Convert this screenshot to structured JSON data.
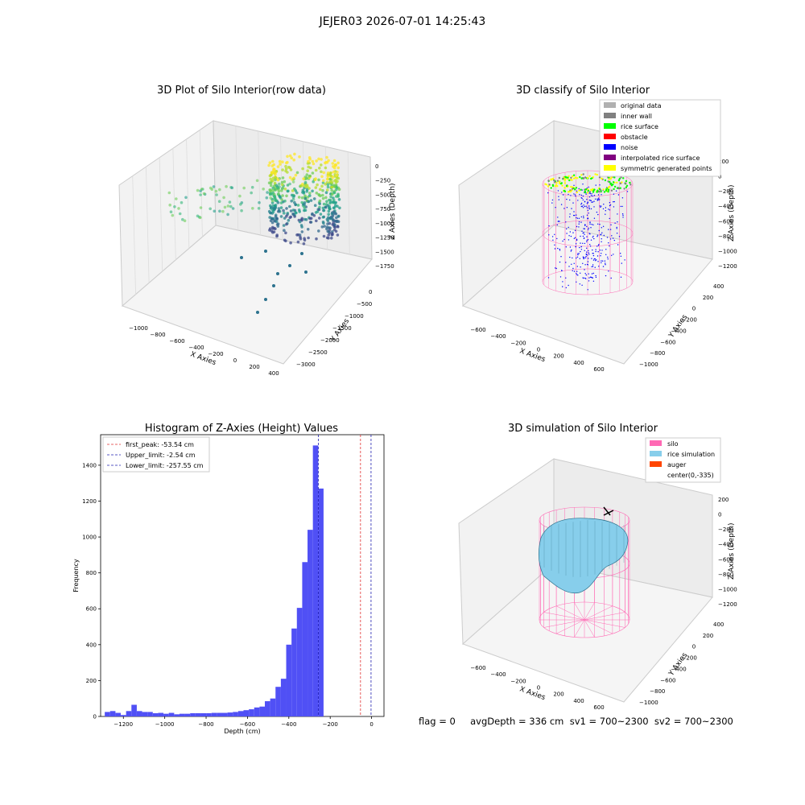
{
  "figure": {
    "suptitle": "JEJER03 2026-07-01 14:25:43"
  },
  "colors": {
    "hist_bar": "#5050f5",
    "peak_line": "#e03030",
    "limit_line": "#2020b0",
    "silo": "#ff69b4",
    "rice_sim": "#87ceeb",
    "auger": "#ff4500",
    "original": "#b0b0b0",
    "inner_wall": "#808080",
    "rice_surface": "#00ff00",
    "obstacle": "#ff0000",
    "noise": "#0000ff",
    "interp": "#800080",
    "symmetric": "#ffff00"
  },
  "panels": {
    "raw": {
      "title": "3D Plot of Silo Interior(row data)",
      "xlabel": "X Axies",
      "ylabel": "Y Axies",
      "zlabel": "Z Axies (Depth)",
      "xticks": [
        "−1000",
        "−800",
        "−600",
        "−400",
        "−200",
        "0",
        "200",
        "400"
      ],
      "yticks": [
        "0",
        "−500",
        "−1000",
        "−1500",
        "−2000",
        "−2500",
        "−3000"
      ],
      "zticks": [
        "0",
        "−250",
        "−500",
        "−750",
        "−1000",
        "−1250",
        "−1500",
        "−1750"
      ]
    },
    "classify": {
      "title": "3D classify of Silo Interior",
      "xlabel": "X Axies",
      "ylabel": "Y Axies",
      "zlabel": "Z Axies (Depth)",
      "xticks": [
        "−600",
        "−400",
        "−200",
        "0",
        "200",
        "400",
        "600"
      ],
      "yticks": [
        "400",
        "200",
        "0",
        "−200",
        "−400",
        "−600",
        "−800",
        "−1000"
      ],
      "zticks": [
        "200",
        "0",
        "−200",
        "−400",
        "−600",
        "−800",
        "−1000",
        "−1200"
      ],
      "legend": [
        {
          "label": "original data",
          "color": "#b0b0b0"
        },
        {
          "label": "inner wall",
          "color": "#808080"
        },
        {
          "label": "rice surface",
          "color": "#00ff00"
        },
        {
          "label": "obstacle",
          "color": "#ff0000"
        },
        {
          "label": "noise",
          "color": "#0000ff"
        },
        {
          "label": "interpolated rice surface",
          "color": "#800080"
        },
        {
          "label": "symmetric generated points",
          "color": "#ffff00"
        }
      ]
    },
    "simulation": {
      "title": "3D simulation of Silo Interior",
      "xlabel": "X Axies",
      "ylabel": "Y Axies",
      "zlabel": "Z Axies (Depth)",
      "xticks": [
        "−600",
        "−400",
        "−200",
        "0",
        "200",
        "400",
        "600"
      ],
      "yticks": [
        "400",
        "200",
        "0",
        "−200",
        "−400",
        "−600",
        "−800",
        "−1000"
      ],
      "zticks": [
        "200",
        "0",
        "−200",
        "−400",
        "−600",
        "−800",
        "−1000",
        "−1200"
      ],
      "legend": [
        {
          "label": "silo",
          "color": "#ff69b4"
        },
        {
          "label": "rice simulation",
          "color": "#87ceeb"
        },
        {
          "label": "auger",
          "color": "#ff4500"
        },
        {
          "label": "center(0,-335)",
          "color": ""
        }
      ],
      "status": "flag = 0     avgDepth = 336 cm  sv1 = 700~2300  sv2 = 700~2300"
    }
  },
  "chart_data": {
    "type": "bar",
    "title": "Histogram of Z-Axies (Height) Values",
    "xlabel": "Depth (cm)",
    "ylabel": "Frequency",
    "xlim": [
      -1310,
      60
    ],
    "ylim": [
      0,
      1570
    ],
    "xticks": [
      -1200,
      -1000,
      -800,
      -600,
      -400,
      -200,
      0
    ],
    "yticks": [
      0,
      200,
      400,
      600,
      800,
      1000,
      1200,
      1400
    ],
    "bin_width": 25.8,
    "bin_start": -1290,
    "counts": [
      25,
      30,
      20,
      8,
      30,
      65,
      30,
      25,
      25,
      18,
      20,
      15,
      20,
      12,
      15,
      15,
      18,
      18,
      18,
      18,
      20,
      20,
      20,
      22,
      25,
      30,
      35,
      40,
      50,
      55,
      85,
      100,
      165,
      210,
      400,
      490,
      605,
      860,
      1040,
      1510,
      1270
    ],
    "lines": [
      {
        "name": "first_peak: -53.54 cm",
        "x": -53.54,
        "color": "#e03030"
      },
      {
        "name": "Upper_limit: -2.54 cm",
        "x": -2.54,
        "color": "#2020b0"
      },
      {
        "name": "Lower_limit: -257.55 cm",
        "x": -257.55,
        "color": "#2020b0"
      }
    ],
    "legend_position": "upper-left"
  }
}
